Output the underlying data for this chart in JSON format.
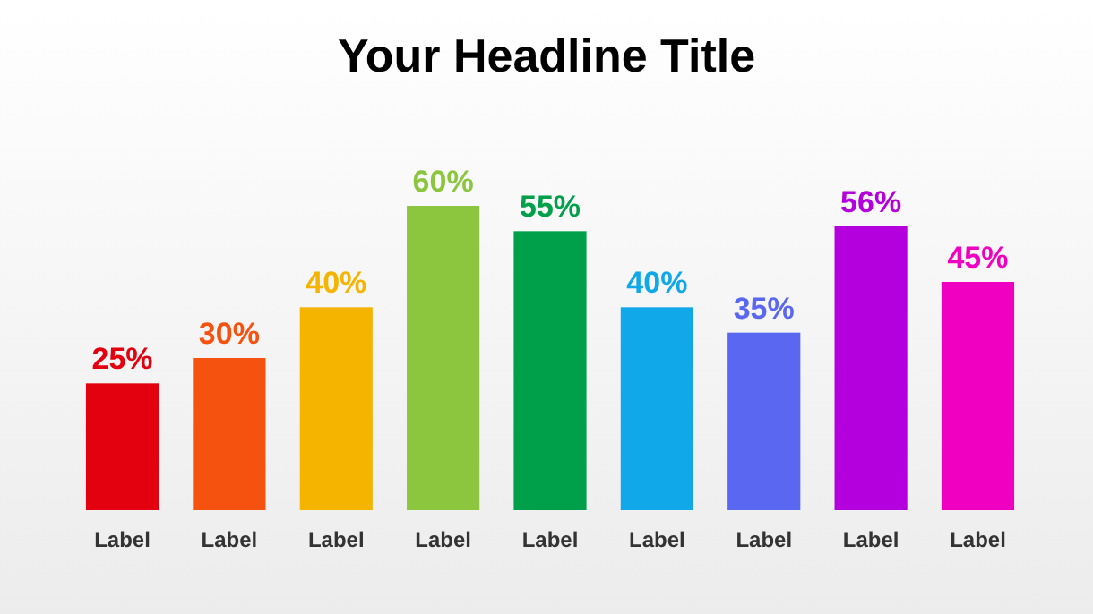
{
  "chart_data": {
    "type": "bar",
    "title": "Your Headline Title",
    "categories": [
      "Label",
      "Label",
      "Label",
      "Label",
      "Label",
      "Label",
      "Label",
      "Label",
      "Label"
    ],
    "values": [
      25,
      30,
      40,
      60,
      55,
      40,
      35,
      56,
      45
    ],
    "colors": [
      "#e3000f",
      "#f5520f",
      "#f5b400",
      "#8cc63e",
      "#00a04a",
      "#10a8e8",
      "#5a67f0",
      "#b300dc",
      "#f000c0"
    ],
    "value_labels": [
      "25%",
      "30%",
      "40%",
      "60%",
      "55%",
      "40%",
      "35%",
      "56%",
      "45%"
    ],
    "grid": false
  }
}
